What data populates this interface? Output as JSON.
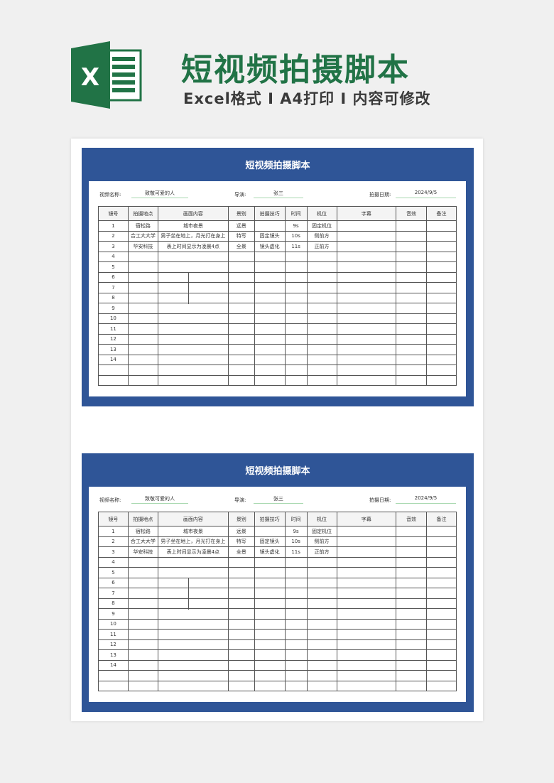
{
  "banner": {
    "title": "短视频拍摄脚本",
    "subtitle": "Excel格式 I A4打印 I 内容可修改",
    "logo_letter": "X",
    "brand_color": "#217346"
  },
  "sheet": {
    "title": "短视频拍摄脚本",
    "header_color": "#2f5597",
    "video_name_label": "视频名称:",
    "video_name": "致敬可爱的人",
    "director_label": "导演:",
    "director": "张三",
    "date_label": "拍摄日期:",
    "date": "2024/9/5",
    "columns": [
      "镜号",
      "拍摄地点",
      "画面内容",
      "景别",
      "拍摄技巧",
      "时间",
      "机位",
      "字幕",
      "音效",
      "备注"
    ],
    "rows": [
      [
        "1",
        "宿松路",
        "城市夜景",
        "远景",
        "",
        "9s",
        "固定机位",
        "",
        "",
        ""
      ],
      [
        "2",
        "合工大大学",
        "男子坐在地上，月光打在身上",
        "特写",
        "固定镜头",
        "10s",
        "侧前方",
        "",
        "",
        ""
      ],
      [
        "3",
        "华安科技",
        "表上时间显示为凌晨4点",
        "全景",
        "镜头虚化",
        "11s",
        "正前方",
        "",
        "",
        ""
      ],
      [
        "4",
        "",
        "",
        "",
        "",
        "",
        "",
        "",
        "",
        ""
      ],
      [
        "5",
        "",
        "",
        "",
        "",
        "",
        "",
        "",
        "",
        ""
      ],
      [
        "6",
        "",
        "",
        "",
        "",
        "",
        "",
        "",
        "",
        ""
      ],
      [
        "7",
        "",
        "",
        "",
        "",
        "",
        "",
        "",
        "",
        ""
      ],
      [
        "8",
        "",
        "",
        "",
        "",
        "",
        "",
        "",
        "",
        ""
      ],
      [
        "9",
        "",
        "",
        "",
        "",
        "",
        "",
        "",
        "",
        ""
      ],
      [
        "10",
        "",
        "",
        "",
        "",
        "",
        "",
        "",
        "",
        ""
      ],
      [
        "11",
        "",
        "",
        "",
        "",
        "",
        "",
        "",
        "",
        ""
      ],
      [
        "12",
        "",
        "",
        "",
        "",
        "",
        "",
        "",
        "",
        ""
      ],
      [
        "13",
        "",
        "",
        "",
        "",
        "",
        "",
        "",
        "",
        ""
      ],
      [
        "14",
        "",
        "",
        "",
        "",
        "",
        "",
        "",
        "",
        ""
      ],
      [
        "",
        "",
        "",
        "",
        "",
        "",
        "",
        "",
        "",
        ""
      ],
      [
        "",
        "",
        "",
        "",
        "",
        "",
        "",
        "",
        "",
        ""
      ]
    ]
  }
}
